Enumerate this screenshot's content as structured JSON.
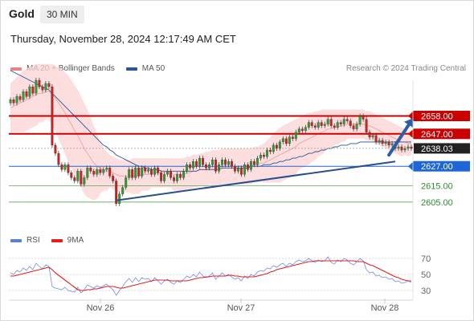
{
  "header": {
    "symbol": "Gold",
    "timeframe": "30 MIN"
  },
  "datetime": "Thursday, November 28, 2024 12:17:49 AM CET",
  "legend": {
    "items": [
      {
        "label": "MA 20 + Bollinger Bands",
        "color": "#f08080"
      },
      {
        "label": "MA 50",
        "color": "#2a5597"
      }
    ]
  },
  "credit": "Research © 2024 Trading Central",
  "rsi_legend": {
    "items": [
      {
        "label": "RSI",
        "color": "#5a7fd6"
      },
      {
        "label": "9MA",
        "color": "#e02020"
      }
    ]
  },
  "colors": {
    "up": "#2e9e2e",
    "down": "#d02020",
    "resistance": "#cc0000",
    "support": "#1e66d6",
    "trend": "#2a4f8f",
    "current": "#222222"
  },
  "chart_data": [
    {
      "type": "candlestick",
      "x_labels": [
        "Nov 26",
        "Nov 27",
        "Nov 28"
      ],
      "ylim": [
        2595,
        2680
      ],
      "levels": [
        {
          "value": 2658.0,
          "label": "2658.00",
          "kind": "resistance"
        },
        {
          "value": 2647.0,
          "label": "2647.00",
          "kind": "resistance"
        },
        {
          "value": 2638.03,
          "label": "2638.03",
          "kind": "current"
        },
        {
          "value": 2627.0,
          "label": "2627.00",
          "kind": "support"
        },
        {
          "value": 2615.0,
          "label": "2615.00",
          "kind": "minor"
        },
        {
          "value": 2605.0,
          "label": "2605.00",
          "kind": "minor"
        }
      ],
      "close": [
        2668,
        2666,
        2670,
        2668,
        2673,
        2670,
        2676,
        2672,
        2680,
        2676,
        2674,
        2678,
        2676,
        2640,
        2635,
        2628,
        2625,
        2628,
        2623,
        2620,
        2618,
        2624,
        2616,
        2620,
        2626,
        2624,
        2622,
        2625,
        2623,
        2625,
        2626,
        2621,
        2618,
        2604,
        2610,
        2614,
        2620,
        2625,
        2620,
        2626,
        2621,
        2626,
        2624,
        2625,
        2622,
        2626,
        2623,
        2618,
        2622,
        2624,
        2620,
        2618,
        2622,
        2620,
        2624,
        2628,
        2626,
        2630,
        2627,
        2632,
        2628,
        2626,
        2628,
        2631,
        2624,
        2628,
        2631,
        2628,
        2630,
        2627,
        2624,
        2626,
        2622,
        2628,
        2625,
        2630,
        2628,
        2632,
        2634,
        2633,
        2637,
        2636,
        2640,
        2638,
        2642,
        2644,
        2641,
        2645,
        2644,
        2648,
        2650,
        2649,
        2651,
        2654,
        2652,
        2651,
        2654,
        2652,
        2653,
        2656,
        2652,
        2651,
        2654,
        2653,
        2656,
        2655,
        2652,
        2650,
        2653,
        2658,
        2656,
        2648,
        2645,
        2646,
        2642,
        2643,
        2641,
        2642,
        2640,
        2641,
        2638,
        2639,
        2637,
        2638,
        2639,
        2638
      ],
      "ma20": [
        2663,
        2664,
        2665,
        2666,
        2667,
        2668,
        2669,
        2670,
        2671,
        2672,
        2672,
        2673,
        2673,
        2671,
        2669,
        2666,
        2663,
        2660,
        2656,
        2653,
        2649,
        2646,
        2642,
        2638,
        2635,
        2632,
        2629,
        2627,
        2626,
        2625,
        2624,
        2624,
        2623,
        2622,
        2621,
        2621,
        2621,
        2621,
        2621,
        2621,
        2621,
        2622,
        2622,
        2622,
        2623,
        2623,
        2623,
        2623,
        2623,
        2623,
        2623,
        2622,
        2622,
        2622,
        2622,
        2623,
        2623,
        2624,
        2624,
        2625,
        2625,
        2625,
        2626,
        2626,
        2626,
        2626,
        2627,
        2627,
        2627,
        2627,
        2627,
        2627,
        2627,
        2627,
        2627,
        2627,
        2628,
        2628,
        2629,
        2629,
        2630,
        2631,
        2632,
        2633,
        2634,
        2635,
        2636,
        2637,
        2638,
        2639,
        2641,
        2642,
        2643,
        2644,
        2645,
        2646,
        2647,
        2648,
        2649,
        2650,
        2650,
        2651,
        2651,
        2652,
        2652,
        2653,
        2653,
        2653,
        2653,
        2653,
        2653,
        2652,
        2652,
        2651,
        2650,
        2649,
        2648,
        2647,
        2646,
        2645,
        2644,
        2643,
        2642,
        2642,
        2641,
        2641
      ],
      "ma50": [
        2686,
        2685,
        2684,
        2683,
        2682,
        2681,
        2680,
        2679,
        2678,
        2677,
        2676,
        2675,
        2674,
        2672,
        2670,
        2668,
        2666,
        2664,
        2662,
        2660,
        2658,
        2656,
        2654,
        2652,
        2650,
        2648,
        2646,
        2644,
        2642,
        2640,
        2639,
        2637,
        2636,
        2634,
        2633,
        2632,
        2631,
        2630,
        2629,
        2628,
        2627,
        2627,
        2626,
        2626,
        2625,
        2625,
        2625,
        2624,
        2624,
        2624,
        2624,
        2624,
        2624,
        2624,
        2624,
        2624,
        2624,
        2624,
        2624,
        2625,
        2625,
        2625,
        2625,
        2625,
        2625,
        2625,
        2626,
        2626,
        2626,
        2626,
        2626,
        2626,
        2626,
        2626,
        2626,
        2627,
        2627,
        2627,
        2627,
        2628,
        2628,
        2628,
        2629,
        2629,
        2630,
        2630,
        2631,
        2631,
        2632,
        2632,
        2633,
        2633,
        2634,
        2635,
        2635,
        2636,
        2636,
        2637,
        2637,
        2638,
        2638,
        2639,
        2639,
        2640,
        2640,
        2640,
        2641,
        2641,
        2641,
        2642,
        2642,
        2642,
        2642,
        2642,
        2642,
        2642,
        2642,
        2642,
        2642,
        2642,
        2642,
        2642,
        2642,
        2642,
        2642,
        2642
      ],
      "bb_upper": [
        2678,
        2680,
        2682,
        2684,
        2686,
        2687,
        2688,
        2689,
        2690,
        2690,
        2690,
        2690,
        2690,
        2690,
        2689,
        2688,
        2687,
        2685,
        2683,
        2680,
        2677,
        2674,
        2670,
        2666,
        2662,
        2657,
        2652,
        2647,
        2642,
        2638,
        2636,
        2634,
        2633,
        2632,
        2631,
        2631,
        2631,
        2631,
        2632,
        2632,
        2632,
        2632,
        2632,
        2632,
        2632,
        2632,
        2632,
        2632,
        2632,
        2632,
        2632,
        2632,
        2632,
        2632,
        2632,
        2633,
        2633,
        2634,
        2634,
        2635,
        2635,
        2636,
        2636,
        2637,
        2637,
        2637,
        2638,
        2638,
        2638,
        2638,
        2638,
        2638,
        2638,
        2638,
        2638,
        2638,
        2639,
        2639,
        2640,
        2641,
        2643,
        2645,
        2647,
        2649,
        2651,
        2652,
        2653,
        2654,
        2655,
        2656,
        2657,
        2658,
        2659,
        2660,
        2660,
        2661,
        2661,
        2662,
        2662,
        2662,
        2662,
        2662,
        2662,
        2662,
        2662,
        2662,
        2662,
        2662,
        2662,
        2662,
        2662,
        2661,
        2661,
        2660,
        2659,
        2658,
        2657,
        2656,
        2655,
        2654,
        2653,
        2652,
        2651,
        2650,
        2649,
        2648
      ],
      "bb_lower": [
        2648,
        2648,
        2648,
        2648,
        2648,
        2649,
        2650,
        2651,
        2652,
        2654,
        2654,
        2656,
        2656,
        2652,
        2649,
        2644,
        2639,
        2635,
        2629,
        2626,
        2621,
        2618,
        2614,
        2610,
        2608,
        2607,
        2606,
        2607,
        2610,
        2612,
        2612,
        2614,
        2613,
        2612,
        2611,
        2611,
        2611,
        2611,
        2610,
        2610,
        2610,
        2612,
        2612,
        2612,
        2614,
        2614,
        2614,
        2614,
        2614,
        2614,
        2614,
        2612,
        2612,
        2612,
        2612,
        2613,
        2613,
        2614,
        2614,
        2615,
        2615,
        2614,
        2616,
        2615,
        2615,
        2615,
        2616,
        2616,
        2616,
        2616,
        2616,
        2616,
        2616,
        2616,
        2616,
        2616,
        2617,
        2617,
        2618,
        2617,
        2617,
        2617,
        2617,
        2617,
        2617,
        2618,
        2619,
        2620,
        2621,
        2622,
        2625,
        2626,
        2627,
        2628,
        2630,
        2631,
        2633,
        2634,
        2636,
        2638,
        2638,
        2640,
        2640,
        2642,
        2642,
        2644,
        2644,
        2644,
        2644,
        2644,
        2644,
        2643,
        2643,
        2642,
        2641,
        2640,
        2639,
        2638,
        2637,
        2636,
        2635,
        2634,
        2633,
        2634,
        2633,
        2634
      ],
      "trendline": [
        [
          33,
          2606
        ],
        [
          120,
          2630
        ]
      ],
      "projection": [
        [
          118,
          2634
        ],
        [
          125,
          2655
        ]
      ]
    },
    {
      "type": "line",
      "title": "RSI",
      "ylim": [
        20,
        80
      ],
      "y_ticks": [
        30,
        50,
        70
      ],
      "rsi": [
        52,
        50,
        55,
        53,
        58,
        55,
        60,
        56,
        64,
        60,
        57,
        62,
        60,
        35,
        33,
        32,
        31,
        34,
        30,
        29,
        28,
        34,
        27,
        31,
        37,
        35,
        33,
        36,
        34,
        36,
        38,
        34,
        31,
        24,
        30,
        35,
        41,
        45,
        40,
        46,
        41,
        46,
        44,
        45,
        41,
        46,
        42,
        38,
        42,
        44,
        40,
        38,
        42,
        40,
        44,
        48,
        46,
        50,
        47,
        53,
        48,
        46,
        48,
        52,
        44,
        48,
        52,
        48,
        50,
        47,
        44,
        46,
        42,
        48,
        45,
        50,
        48,
        53,
        55,
        54,
        58,
        57,
        61,
        59,
        62,
        64,
        60,
        64,
        62,
        66,
        68,
        66,
        67,
        70,
        67,
        65,
        68,
        66,
        67,
        72,
        65,
        63,
        68,
        66,
        70,
        68,
        64,
        62,
        66,
        70,
        67,
        56,
        52,
        53,
        48,
        49,
        46,
        47,
        44,
        45,
        41,
        42,
        39,
        40,
        42,
        40
      ],
      "ma9": [
        48,
        48,
        49,
        50,
        51,
        52,
        53,
        54,
        55,
        56,
        57,
        58,
        59,
        56,
        52,
        49,
        46,
        43,
        40,
        37,
        34,
        31,
        30,
        30,
        31,
        31,
        32,
        32,
        33,
        34,
        35,
        35,
        35,
        34,
        33,
        33,
        34,
        35,
        36,
        37,
        38,
        39,
        40,
        41,
        42,
        43,
        43,
        43,
        43,
        43,
        42,
        42,
        42,
        42,
        42,
        42,
        43,
        44,
        45,
        46,
        46,
        47,
        47,
        48,
        48,
        48,
        48,
        48,
        49,
        49,
        48,
        48,
        47,
        47,
        47,
        47,
        47,
        48,
        49,
        50,
        51,
        53,
        54,
        56,
        57,
        58,
        59,
        60,
        61,
        62,
        63,
        64,
        65,
        66,
        66,
        67,
        67,
        67,
        67,
        67,
        67,
        67,
        67,
        67,
        67,
        67,
        67,
        67,
        66,
        66,
        66,
        64,
        62,
        61,
        59,
        57,
        55,
        53,
        51,
        49,
        47,
        46,
        44,
        43,
        42,
        42
      ]
    }
  ]
}
